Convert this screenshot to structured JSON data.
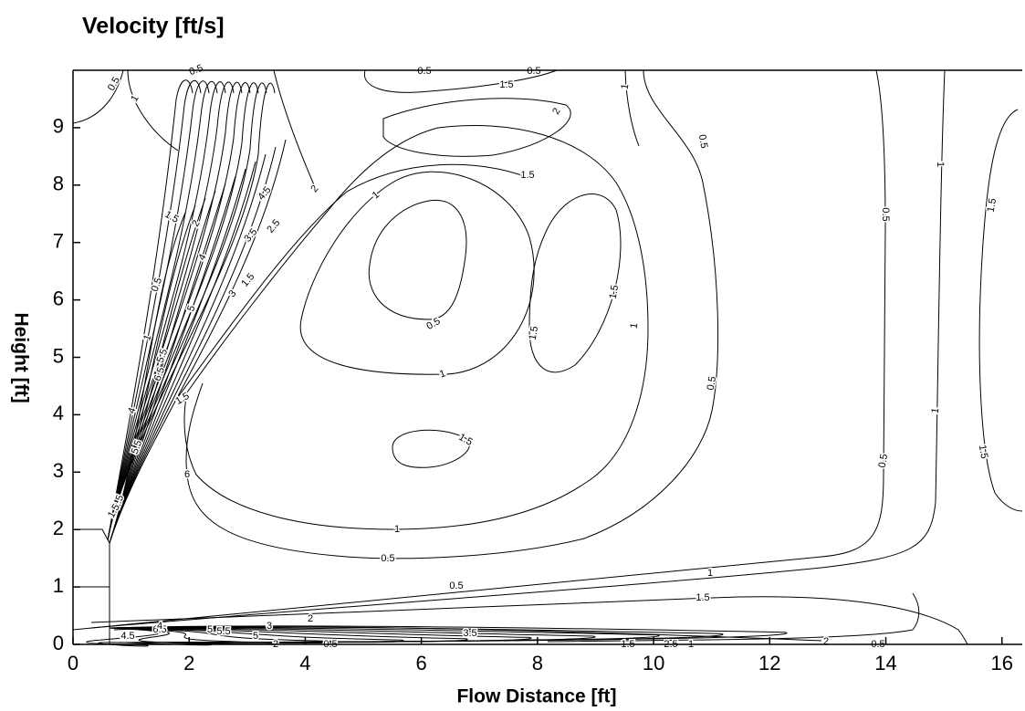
{
  "chart_data": {
    "type": "contour",
    "title": "Velocity [ft/s]",
    "xlabel": "Flow Distance [ft]",
    "ylabel": "Height [ft]",
    "levels": [
      0.5,
      1,
      1.5,
      2,
      2.5,
      3,
      3.5,
      4,
      4.5,
      5,
      5.5,
      6,
      6.5
    ],
    "color": "#000000",
    "xlim": [
      0,
      16.35
    ],
    "ylim": [
      0,
      10
    ],
    "xticks": [
      0,
      2,
      4,
      6,
      8,
      10,
      12,
      14,
      16
    ],
    "yticks": [
      0,
      1,
      2,
      3,
      4,
      5,
      6,
      7,
      8,
      9
    ]
  }
}
